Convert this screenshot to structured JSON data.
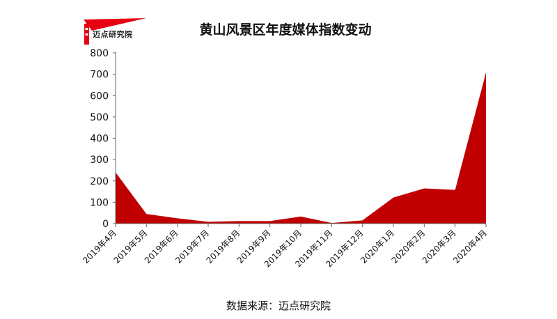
{
  "header": {
    "logo_text": "迈点研究院"
  },
  "source_text": "数据来源：迈点研究院",
  "colors": {
    "area_fill": "#c00000",
    "axis": "#666666",
    "text": "#111111"
  },
  "chart_data": {
    "type": "area",
    "title": "黄山风景区年度媒体指数变动",
    "xlabel": "",
    "ylabel": "",
    "ylim": [
      0,
      800
    ],
    "yticks": [
      0,
      100,
      200,
      300,
      400,
      500,
      600,
      700,
      800
    ],
    "grid": false,
    "legend": "none",
    "categories": [
      "2019年4月",
      "2019年5月",
      "2019年6月",
      "2019年7月",
      "2019年8月",
      "2019年9月",
      "2019年10月",
      "2019年11月",
      "2019年12月",
      "2020年1月",
      "2020年2月",
      "2020年3月",
      "2020年4月"
    ],
    "series": [
      {
        "values": [
          240,
          45,
          25,
          8,
          12,
          12,
          33,
          3,
          15,
          122,
          165,
          158,
          708
        ]
      }
    ]
  }
}
